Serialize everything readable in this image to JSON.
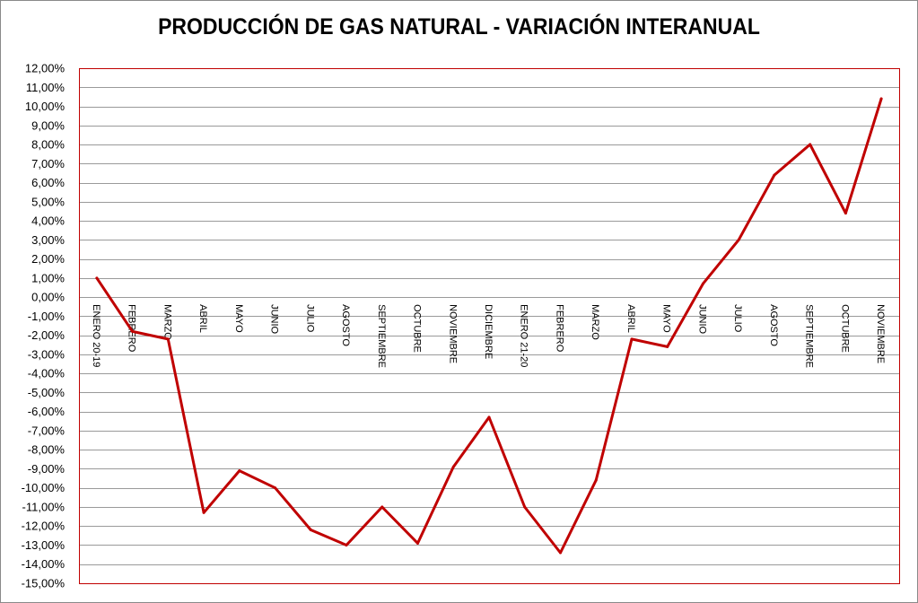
{
  "chart_data": {
    "type": "line",
    "title": "PRODUCCIÓN DE GAS NATURAL - VARIACIÓN INTERANUAL",
    "xlabel": "",
    "ylabel": "",
    "categories": [
      "ENERO 20-19",
      "FEBRERO",
      "MARZO",
      "ABRIL",
      "MAYO",
      "JUNIO",
      "JULIO",
      "AGOSTO",
      "SEPTIEMBRE",
      "OCTUBRE",
      "NOVIEMBRE",
      "DICIEMBRE",
      "ENERO 21-20",
      "FEBRERO",
      "MARZO",
      "ABRIL",
      "MAYO",
      "JUNIO",
      "JULIO",
      "AGOSTO",
      "SEPTIEMBRE",
      "OCTUBRE",
      "NOVIEMBRE"
    ],
    "series": [
      {
        "values": [
          1.0,
          -1.8,
          -2.2,
          -11.3,
          -9.1,
          -10.0,
          -12.2,
          -13.0,
          -11.0,
          -12.9,
          -8.9,
          -6.3,
          -11.0,
          -13.4,
          -9.6,
          -2.2,
          -2.6,
          0.7,
          3.0,
          6.4,
          8.0,
          4.4,
          10.4
        ],
        "color": "#c00000"
      }
    ],
    "ylim": [
      -15,
      12
    ],
    "ytick_step": 1,
    "ytick_labels": [
      "12,00%",
      "11,00%",
      "10,00%",
      "9,00%",
      "8,00%",
      "7,00%",
      "6,00%",
      "5,00%",
      "4,00%",
      "3,00%",
      "2,00%",
      "1,00%",
      "0,00%",
      "-1,00%",
      "-2,00%",
      "-3,00%",
      "-4,00%",
      "-5,00%",
      "-6,00%",
      "-7,00%",
      "-8,00%",
      "-9,00%",
      "-10,00%",
      "-11,00%",
      "-12,00%",
      "-13,00%",
      "-14,00%",
      "-15,00%"
    ],
    "grid": true,
    "legend": "none",
    "plot_border_color": "#c00000"
  }
}
